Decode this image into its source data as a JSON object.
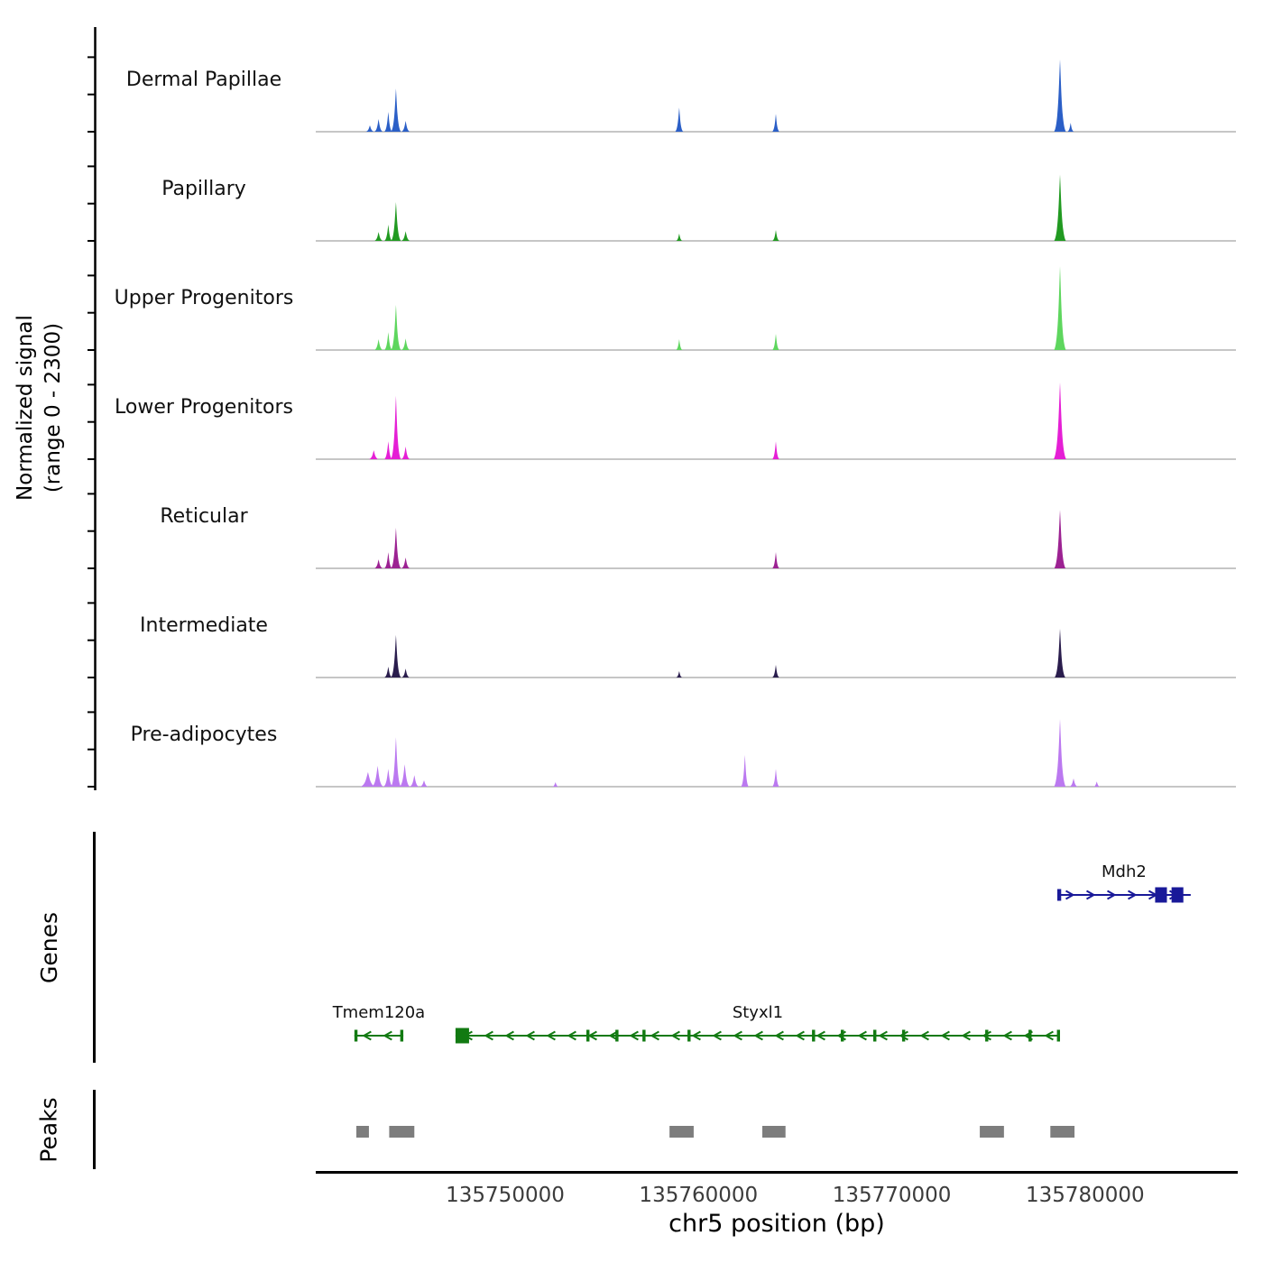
{
  "axes": {
    "y_label_line1": "Normalized signal",
    "y_label_line2": "(range 0 - 2300)",
    "x_label": "chr5 position (bp)"
  },
  "sections": {
    "genes_label": "Genes",
    "peaks_label": "Peaks"
  },
  "chart_data": {
    "type": "area",
    "title": "",
    "xlabel": "chr5 position (bp)",
    "ylabel": "Normalized signal (range 0 - 2300)",
    "x_range_bp": [
      135740200,
      135787800
    ],
    "x_tick_values": [
      135750000,
      135760000,
      135770000,
      135780000
    ],
    "y_range_per_track": [
      0,
      2300
    ],
    "y_axis_ticks_per_track": [
      0,
      1000,
      2000
    ],
    "grid": false,
    "colors": {
      "baseline": "#8c8c8c",
      "axis": "#000000",
      "peak_calls": "#7d7d7d",
      "gene_green": "#127a12",
      "gene_navy": "#191999"
    },
    "tracks": [
      {
        "label": "Dermal Papillae",
        "color": "#2b5fc7",
        "peaks": [
          [
            135743000,
            170,
            450
          ],
          [
            135743450,
            340,
            450
          ],
          [
            135743950,
            530,
            420
          ],
          [
            135744350,
            1160,
            520
          ],
          [
            135744850,
            290,
            450
          ],
          [
            135759000,
            650,
            430
          ],
          [
            135764000,
            480,
            380
          ],
          [
            135778700,
            1940,
            620
          ],
          [
            135779250,
            240,
            350
          ]
        ]
      },
      {
        "label": "Papillary",
        "color": "#219a21",
        "peaks": [
          [
            135743450,
            240,
            450
          ],
          [
            135743950,
            435,
            420
          ],
          [
            135744350,
            1040,
            520
          ],
          [
            135744850,
            260,
            450
          ],
          [
            135759000,
            195,
            350
          ],
          [
            135764000,
            290,
            380
          ],
          [
            135778700,
            1780,
            620
          ]
        ]
      },
      {
        "label": "Upper Progenitors",
        "color": "#5ed65e",
        "peaks": [
          [
            135743450,
            290,
            450
          ],
          [
            135743950,
            480,
            420
          ],
          [
            135744350,
            1210,
            520
          ],
          [
            135744850,
            310,
            450
          ],
          [
            135759000,
            290,
            350
          ],
          [
            135764000,
            435,
            380
          ],
          [
            135778700,
            2250,
            620
          ]
        ]
      },
      {
        "label": "Lower Progenitors",
        "color": "#e51fd5",
        "peaks": [
          [
            135743200,
            240,
            500
          ],
          [
            135743950,
            480,
            420
          ],
          [
            135744350,
            1700,
            520
          ],
          [
            135744850,
            340,
            450
          ],
          [
            135764000,
            480,
            380
          ],
          [
            135778700,
            2060,
            650
          ]
        ]
      },
      {
        "label": "Reticular",
        "color": "#9c2292",
        "peaks": [
          [
            135743450,
            240,
            450
          ],
          [
            135743950,
            430,
            420
          ],
          [
            135744350,
            1090,
            520
          ],
          [
            135744850,
            290,
            450
          ],
          [
            135764000,
            435,
            380
          ],
          [
            135778700,
            1570,
            600
          ]
        ]
      },
      {
        "label": "Intermediate",
        "color": "#2a1d4d",
        "peaks": [
          [
            135743950,
            290,
            420
          ],
          [
            135744350,
            1140,
            520
          ],
          [
            135744850,
            240,
            420
          ],
          [
            135759000,
            170,
            330
          ],
          [
            135764000,
            340,
            380
          ],
          [
            135778700,
            1310,
            560
          ]
        ]
      },
      {
        "label": "Pre-adipocytes",
        "color": "#bb79f0",
        "peaks": [
          [
            135742900,
            390,
            800
          ],
          [
            135743400,
            560,
            600
          ],
          [
            135743950,
            480,
            500
          ],
          [
            135744350,
            1330,
            520
          ],
          [
            135744800,
            600,
            550
          ],
          [
            135745300,
            310,
            500
          ],
          [
            135745800,
            170,
            450
          ],
          [
            135752600,
            120,
            350
          ],
          [
            135762400,
            850,
            400
          ],
          [
            135764000,
            480,
            380
          ],
          [
            135778700,
            1815,
            620
          ],
          [
            135779400,
            220,
            450
          ],
          [
            135780600,
            140,
            350
          ]
        ]
      }
    ],
    "genes": [
      {
        "name": "Mdh2",
        "row": 0,
        "strand": "+",
        "color": "#191999",
        "start": 135778560,
        "end": 135785460,
        "exons": [
          [
            135778560,
            135778760,
            1
          ],
          [
            135783620,
            135784230,
            2
          ],
          [
            135784470,
            135785080,
            2
          ]
        ]
      },
      {
        "name": "Tmem120a",
        "row": 1,
        "strand": "-",
        "color": "#127a12",
        "start": 135742200,
        "end": 135744730,
        "exons": [
          [
            135742200,
            135742360,
            1
          ],
          [
            135744570,
            135744730,
            1
          ]
        ]
      },
      {
        "name": "Styxl1",
        "row": 1,
        "strand": "-",
        "color": "#127a12",
        "start": 135747430,
        "end": 135778700,
        "exons": [
          [
            135747430,
            135748130,
            2
          ],
          [
            135754200,
            135754360,
            1
          ],
          [
            135755700,
            135755860,
            1
          ],
          [
            135757100,
            135757260,
            1
          ],
          [
            135759430,
            135759590,
            1
          ],
          [
            135765870,
            135766030,
            1
          ],
          [
            135767360,
            135767520,
            1
          ],
          [
            135769040,
            135769200,
            1
          ],
          [
            135770530,
            135770690,
            1
          ],
          [
            135774830,
            135774990,
            1
          ],
          [
            135777070,
            135777230,
            1
          ],
          [
            135778540,
            135778700,
            1
          ]
        ]
      }
    ],
    "peak_calls": [
      [
        135742300,
        135742950
      ],
      [
        135744000,
        135745300
      ],
      [
        135758500,
        135759750
      ],
      [
        135763300,
        135764500
      ],
      [
        135774550,
        135775800
      ],
      [
        135778200,
        135779450
      ]
    ]
  }
}
